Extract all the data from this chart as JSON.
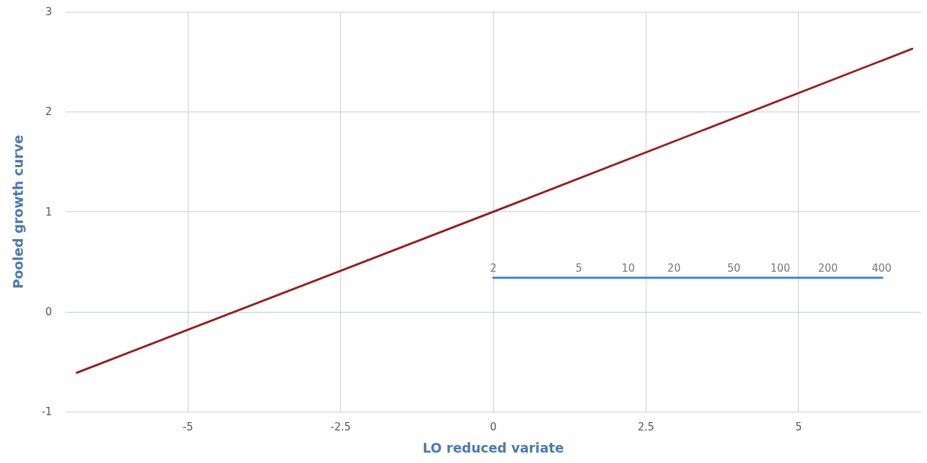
{
  "chart_data": {
    "type": "line",
    "xlabel": "LO reduced variate",
    "ylabel": "Pooled growth curve",
    "xlim": [
      -7,
      7
    ],
    "xticks": [
      -5,
      -2.5,
      0,
      2.5,
      5
    ],
    "ylim": [
      -1,
      3
    ],
    "yticks": [
      -1,
      0,
      1,
      2,
      3
    ],
    "grid": true,
    "marker": "none",
    "line_style": "solid",
    "series": [
      {
        "x": [
          -6.82,
          0,
          6.86
        ],
        "values": [
          -0.61,
          1,
          2.63
        ],
        "color": "#9b1c1c"
      },
      {
        "x": [
          0,
          6.37
        ],
        "values": [
          0.34,
          0.34
        ],
        "color": "#3a80d8"
      }
    ],
    "annotations": [
      {
        "text": "2",
        "x": 0,
        "y": 0.34
      },
      {
        "text": "5",
        "x": 1.4,
        "y": 0.34
      },
      {
        "text": "10",
        "x": 2.21,
        "y": 0.34
      },
      {
        "text": "20",
        "x": 2.96,
        "y": 0.34
      },
      {
        "text": "50",
        "x": 3.94,
        "y": 0.34
      },
      {
        "text": "100",
        "x": 4.7,
        "y": 0.34
      },
      {
        "text": "200",
        "x": 5.48,
        "y": 0.34
      },
      {
        "text": "400",
        "x": 6.36,
        "y": 0.34
      }
    ]
  }
}
